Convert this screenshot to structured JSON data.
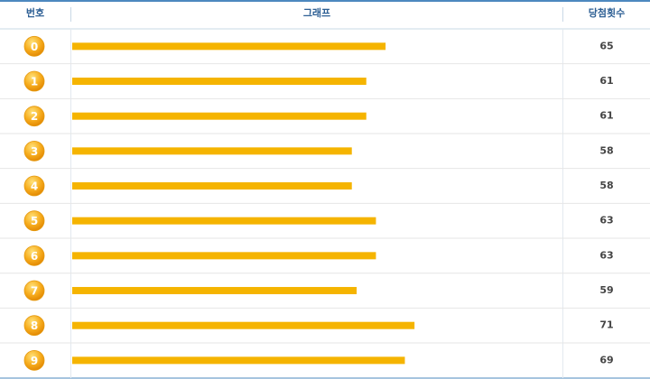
{
  "chart_data": {
    "type": "bar",
    "orientation": "horizontal",
    "columns": [
      "번호",
      "그래프",
      "당첨횟수"
    ],
    "categories": [
      "0",
      "1",
      "2",
      "3",
      "4",
      "5",
      "6",
      "7",
      "8",
      "9"
    ],
    "values": [
      65,
      61,
      61,
      58,
      58,
      63,
      63,
      59,
      71,
      69
    ],
    "color": "#f5b400"
  }
}
